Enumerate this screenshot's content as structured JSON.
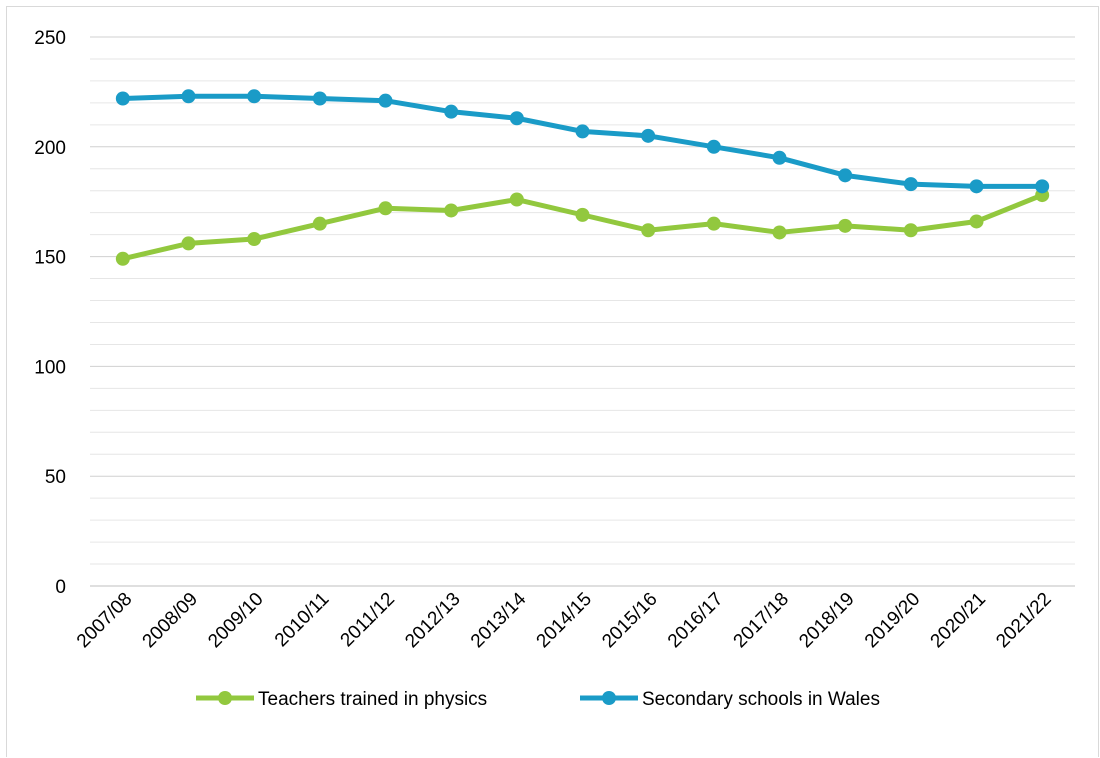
{
  "chart_data": {
    "type": "line",
    "categories": [
      "2007/08",
      "2008/09",
      "2009/10",
      "2010/11",
      "2011/12",
      "2012/13",
      "2013/14",
      "2014/15",
      "2015/16",
      "2016/17",
      "2017/18",
      "2018/19",
      "2019/20",
      "2020/21",
      "2021/22"
    ],
    "series": [
      {
        "name": "Teachers trained in physics",
        "color": "#92c83e",
        "values": [
          149,
          156,
          158,
          165,
          172,
          171,
          176,
          169,
          162,
          165,
          161,
          164,
          162,
          166,
          178
        ]
      },
      {
        "name": "Secondary schools in Wales",
        "color": "#1a9bc7",
        "values": [
          222,
          223,
          223,
          222,
          221,
          216,
          213,
          207,
          205,
          200,
          195,
          187,
          183,
          182,
          182
        ]
      }
    ],
    "yticks": [
      0,
      50,
      100,
      150,
      200,
      250
    ],
    "ylim": [
      0,
      250
    ],
    "minor_grid_step": 10,
    "grid": true,
    "legend_position": "bottom",
    "title": "",
    "xlabel": "",
    "ylabel": ""
  }
}
